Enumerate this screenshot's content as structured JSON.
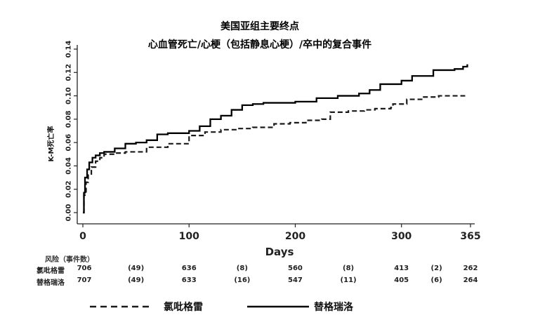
{
  "chart_data": {
    "type": "line",
    "title": "美国亚组主要终点",
    "subtitle": "心血管死亡/心梗（包括静息心梗）/卒中的复合事件",
    "xlabel": "Days",
    "ylabel": "K-M死亡率",
    "xlim": [
      0,
      365
    ],
    "ylim": [
      0,
      0.14
    ],
    "xticks": [
      0,
      100,
      200,
      300,
      365
    ],
    "yticks": [
      0.0,
      0.02,
      0.04,
      0.06,
      0.08,
      0.1,
      0.12,
      0.14
    ],
    "ytick_labels": [
      "0.00",
      "0.02",
      "0.04",
      "0.06",
      "0.08",
      "0.10",
      "0.12",
      "0.14"
    ],
    "grid": false,
    "legend_position": "bottom",
    "series": [
      {
        "name": "氯吡格雷",
        "style": "dashed",
        "color": "#1a1a1a",
        "x": [
          0,
          1,
          3,
          5,
          8,
          12,
          16,
          20,
          30,
          40,
          60,
          80,
          100,
          115,
          130,
          145,
          160,
          180,
          195,
          210,
          225,
          232,
          233,
          250,
          265,
          275,
          290,
          292,
          305,
          320,
          335,
          350,
          360
        ],
        "y": [
          0.0,
          0.015,
          0.026,
          0.033,
          0.039,
          0.044,
          0.047,
          0.05,
          0.051,
          0.052,
          0.056,
          0.059,
          0.066,
          0.069,
          0.071,
          0.072,
          0.073,
          0.076,
          0.077,
          0.079,
          0.08,
          0.08,
          0.086,
          0.087,
          0.088,
          0.089,
          0.09,
          0.093,
          0.097,
          0.099,
          0.1,
          0.1,
          0.1
        ]
      },
      {
        "name": "替格瑞洛",
        "style": "solid",
        "color": "#000000",
        "x": [
          0,
          1,
          2,
          4,
          6,
          9,
          12,
          16,
          20,
          30,
          40,
          50,
          60,
          70,
          80,
          100,
          110,
          120,
          130,
          140,
          150,
          160,
          170,
          180,
          200,
          220,
          240,
          260,
          270,
          280,
          300,
          310,
          330,
          350,
          358,
          362
        ],
        "y": [
          0.0,
          0.017,
          0.03,
          0.037,
          0.043,
          0.047,
          0.049,
          0.051,
          0.052,
          0.055,
          0.059,
          0.06,
          0.062,
          0.067,
          0.068,
          0.07,
          0.074,
          0.08,
          0.083,
          0.088,
          0.092,
          0.093,
          0.094,
          0.094,
          0.095,
          0.098,
          0.1,
          0.102,
          0.105,
          0.11,
          0.113,
          0.117,
          0.122,
          0.123,
          0.125,
          0.127
        ]
      }
    ]
  },
  "risk_table": {
    "header": "风险（事件数）",
    "rows": [
      {
        "label": "氯吡格雷",
        "cells": [
          {
            "x": 0,
            "text": "706"
          },
          {
            "x": 50,
            "text": "(49)"
          },
          {
            "x": 100,
            "text": "636"
          },
          {
            "x": 150,
            "text": "(8)"
          },
          {
            "x": 200,
            "text": "560"
          },
          {
            "x": 250,
            "text": "(8)"
          },
          {
            "x": 300,
            "text": "413"
          },
          {
            "x": 333,
            "text": "(2)"
          },
          {
            "x": 365,
            "text": "262"
          }
        ]
      },
      {
        "label": "替格瑞洛",
        "cells": [
          {
            "x": 0,
            "text": "707"
          },
          {
            "x": 50,
            "text": "(49)"
          },
          {
            "x": 100,
            "text": "633"
          },
          {
            "x": 150,
            "text": "(16)"
          },
          {
            "x": 200,
            "text": "547"
          },
          {
            "x": 250,
            "text": "(11)"
          },
          {
            "x": 300,
            "text": "405"
          },
          {
            "x": 333,
            "text": "(6)"
          },
          {
            "x": 365,
            "text": "264"
          }
        ]
      }
    ]
  }
}
